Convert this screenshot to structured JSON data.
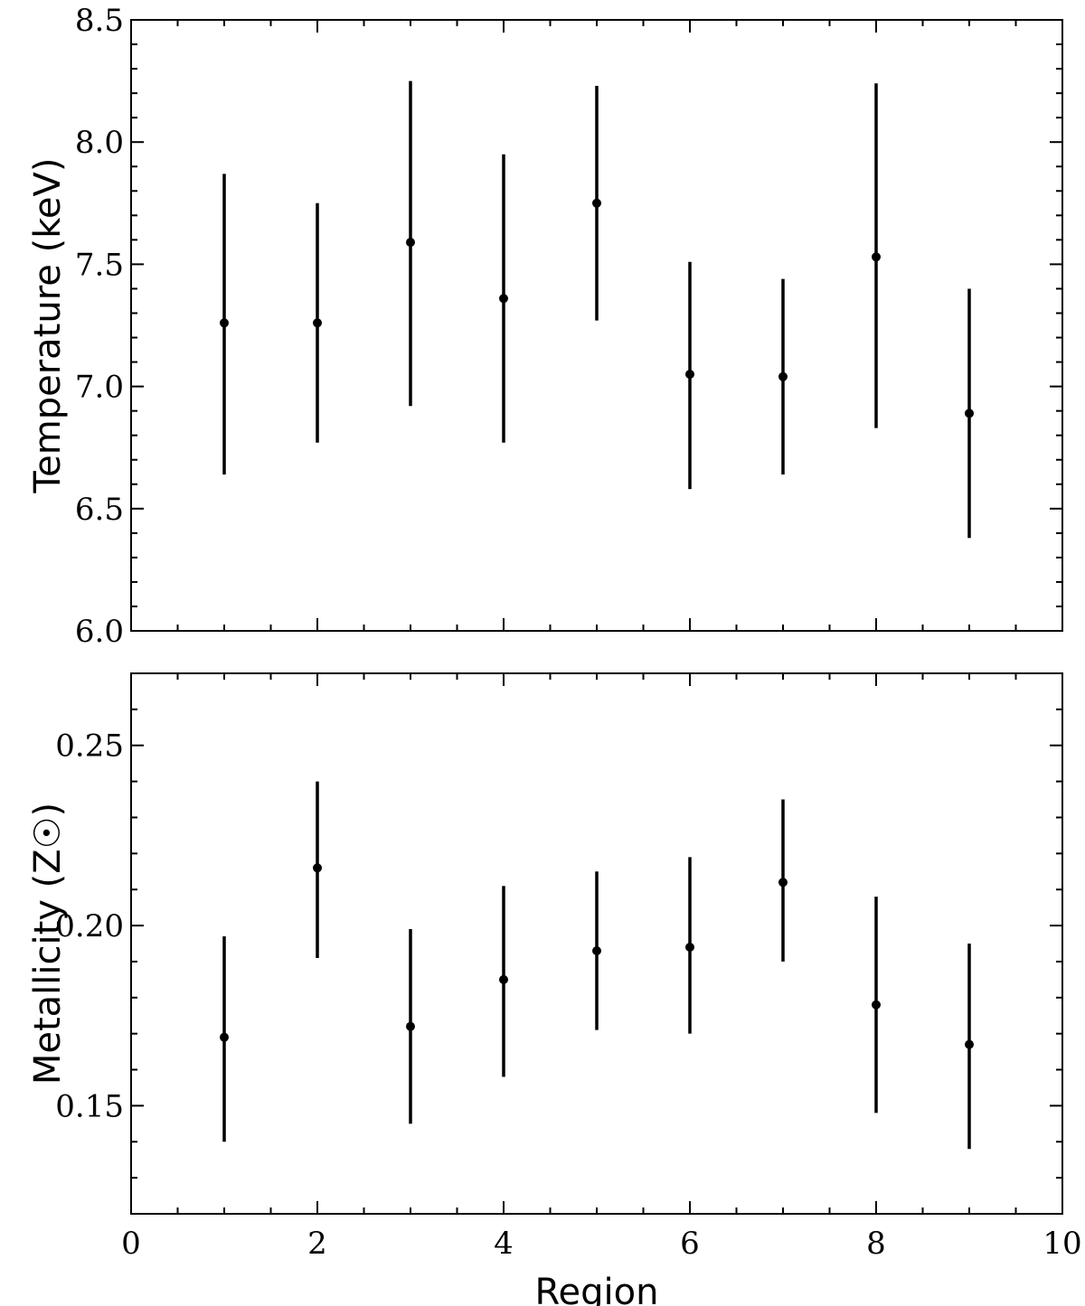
{
  "chart_data": [
    {
      "type": "scatter",
      "xlabel": "",
      "ylabel": "Temperature (keV)",
      "xlim": [
        0,
        10
      ],
      "ylim": [
        6.0,
        8.5
      ],
      "x_major_ticks": [
        0,
        2,
        4,
        6,
        8,
        10
      ],
      "y_major_ticks": [
        6.0,
        6.5,
        7.0,
        7.5,
        8.0,
        8.5
      ],
      "y_tick_labels": [
        "6.0",
        "6.5",
        "7.0",
        "7.5",
        "8.0",
        "8.5"
      ],
      "x_tick_labels_shown": false,
      "grid": false,
      "series": [
        {
          "x": [
            1,
            2,
            3,
            4,
            5,
            6,
            7,
            8,
            9
          ],
          "y": [
            7.26,
            7.26,
            7.59,
            7.36,
            7.75,
            7.05,
            7.04,
            7.53,
            6.89
          ],
          "y_low": [
            6.64,
            6.77,
            6.92,
            6.77,
            7.27,
            6.58,
            6.64,
            6.83,
            6.38
          ],
          "y_high": [
            7.87,
            7.75,
            8.25,
            7.95,
            8.23,
            7.51,
            7.44,
            8.24,
            7.4
          ]
        }
      ]
    },
    {
      "type": "scatter",
      "xlabel": "Region",
      "ylabel": "Metallicity (Z☉)",
      "xlim": [
        0,
        10
      ],
      "ylim": [
        0.12,
        0.27
      ],
      "x_major_ticks": [
        0,
        2,
        4,
        6,
        8,
        10
      ],
      "x_tick_labels": [
        "0",
        "2",
        "4",
        "6",
        "8",
        "10"
      ],
      "y_major_ticks": [
        0.15,
        0.2,
        0.25
      ],
      "y_tick_labels": [
        "0.15",
        "0.20",
        "0.25"
      ],
      "grid": false,
      "series": [
        {
          "x": [
            1,
            2,
            3,
            4,
            5,
            6,
            7,
            8,
            9
          ],
          "y": [
            0.169,
            0.216,
            0.172,
            0.185,
            0.193,
            0.194,
            0.212,
            0.178,
            0.167
          ],
          "y_low": [
            0.14,
            0.191,
            0.145,
            0.158,
            0.171,
            0.17,
            0.19,
            0.148,
            0.138
          ],
          "y_high": [
            0.197,
            0.24,
            0.199,
            0.211,
            0.215,
            0.219,
            0.235,
            0.208,
            0.195
          ]
        }
      ]
    }
  ]
}
